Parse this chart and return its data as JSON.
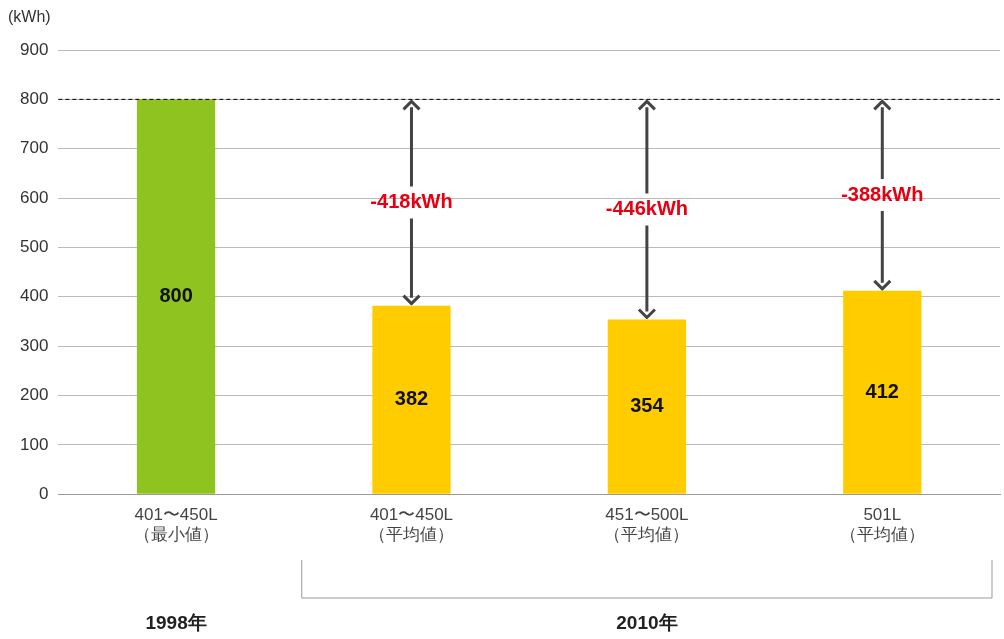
{
  "chart_data": {
    "type": "bar",
    "ylabel": "(kWh)",
    "categories": [
      "401〜450L\n（最小値）",
      "401〜450L\n（平均値）",
      "451〜500L\n（平均値）",
      "501L\n（平均値）"
    ],
    "values": [
      800,
      382,
      354,
      412
    ],
    "colors": [
      "#8fc31f",
      "#ffcc00",
      "#ffcc00",
      "#ffcc00"
    ],
    "ylim": [
      0,
      900
    ],
    "yticks": [
      0,
      100,
      200,
      300,
      400,
      500,
      600,
      700,
      800,
      900
    ],
    "grid": "y",
    "legend": false,
    "data_labels": true,
    "ref_lines": [
      {
        "axis": "y",
        "value": 800,
        "color": "#000000",
        "line_style": "dashed"
      }
    ],
    "annotations": [
      "-418kWh",
      "-446kWh",
      "-388kWh",
      "1998年",
      "2010年"
    ]
  }
}
